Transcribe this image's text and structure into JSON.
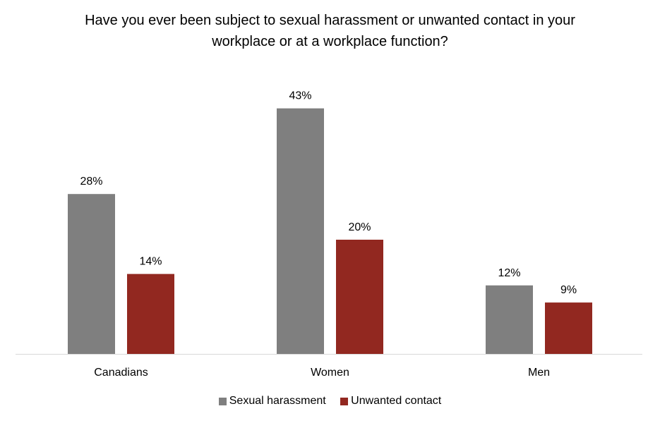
{
  "chart_data": {
    "type": "bar",
    "title_lines": [
      "Have you ever been subject to sexual harassment or unwanted contact in your",
      "workplace or at a workplace function?"
    ],
    "categories": [
      "Canadians",
      "Women",
      "Men"
    ],
    "series": [
      {
        "name": "Sexual harassment",
        "values": [
          28,
          43,
          12
        ],
        "labels": [
          "28%",
          "43%",
          "12%"
        ],
        "color": "#7f7f7f"
      },
      {
        "name": "Unwanted contact",
        "values": [
          14,
          20,
          9
        ],
        "labels": [
          "14%",
          "20%",
          "9%"
        ],
        "color": "#922820"
      }
    ],
    "xlabel": "",
    "ylabel": "",
    "ylim": [
      0,
      50
    ],
    "grid": false,
    "legend": "bottom-center",
    "axis_color": "#d9d9d9"
  }
}
